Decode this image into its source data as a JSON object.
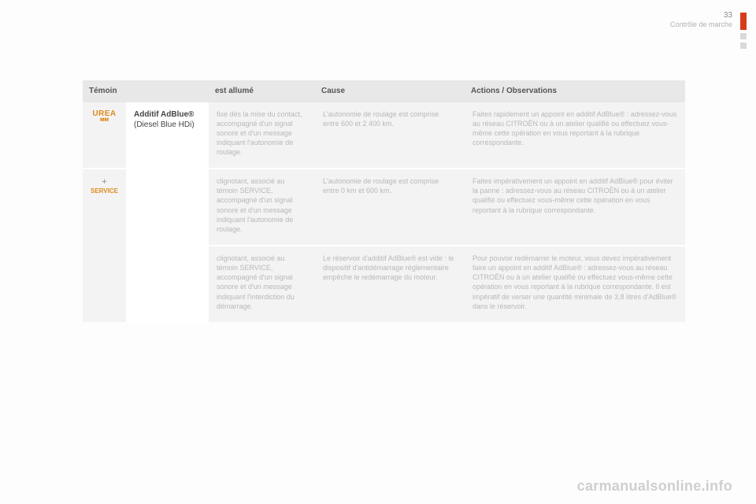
{
  "page": {
    "number": "33",
    "section": "Contrôle de marche"
  },
  "colors": {
    "accent_tab": "#d43c1a",
    "icon_orange": "#e08a1e",
    "header_bg": "#e8e8e8",
    "cell_bg": "#f3f3f3",
    "name_cell_bg": "#ffffff",
    "faded_text": "#b8b8b8"
  },
  "headers": {
    "temoin": "Témoin",
    "allume": "est allumé",
    "cause": "Cause",
    "actions": "Actions / Observations"
  },
  "additif": {
    "name": "Additif AdBlue®",
    "sub": "(Diesel Blue HDi)"
  },
  "icon": {
    "urea_line1": "UREA",
    "urea_line2": "▮▮▮▮",
    "plus": "+",
    "service": "SERVICE"
  },
  "rows": [
    {
      "lit": "fixe dès la mise du contact, accompagné d'un signal sonore et d'un message indiquant l'autonomie de roulage.",
      "cause": "L'autonomie de roulage est comprise entre 600 et 2 400 km.",
      "action": "Faites rapidement un appoint en additif AdBlue® : adressez-vous au réseau CITROËN ou à un atelier qualifié ou effectuez vous-même cette opération en vous reportant à la rubrique correspondante."
    },
    {
      "lit": "clignotant, associé au témoin SERVICE, accompagné d'un signal sonore et d'un message indiquant l'autonomie de roulage.",
      "cause": "L'autonomie de roulage est comprise entre 0 km et 600 km.",
      "action": "Faites impérativement un appoint en additif AdBlue® pour éviter la panne : adressez-vous au réseau CITROËN ou à un atelier qualifié ou effectuez vous-même cette opération en vous reportant à la rubrique correspondante."
    },
    {
      "lit": "clignotant, associé au témoin SERVICE, accompagné d'un signal sonore et d'un message indiquant l'interdiction du démarrage.",
      "cause": "Le réservoir d'additif AdBlue® est vide : le dispositif d'antidémarrage réglementaire empêche le redémarrage du moteur.",
      "action": "Pour pouvoir redémarrer le moteur, vous devez impérativement faire un appoint en additif AdBlue® : adressez-vous au réseau CITROËN ou à un atelier qualifié ou effectuez vous-même cette opération en vous reportant à la rubrique correspondante. Il est impératif de verser une quantité minimale de 3,8 litres d'AdBlue® dans le réservoir."
    }
  ],
  "watermark": "carmanualsonline.info"
}
